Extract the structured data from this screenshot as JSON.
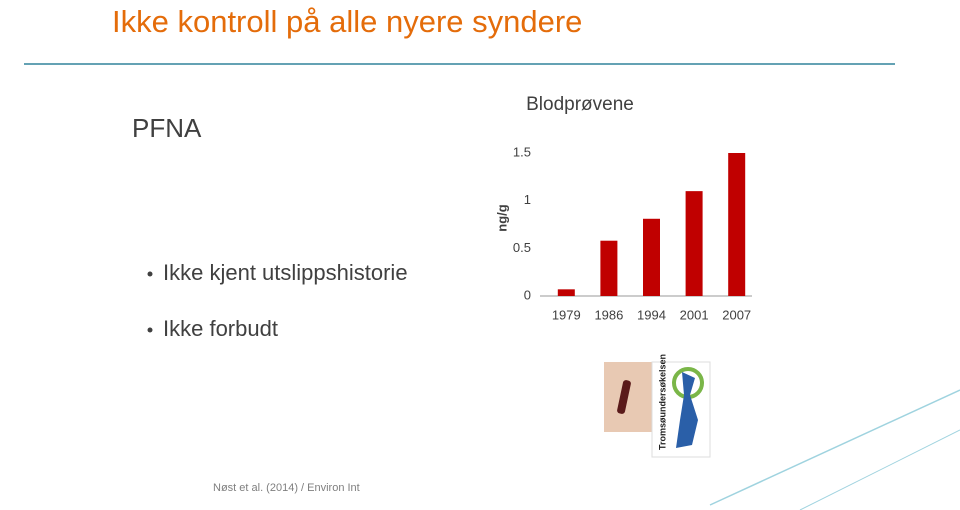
{
  "slide": {
    "title": "Ikke kontroll på alle nyere syndere",
    "heading": "PFNA",
    "bullets": [
      "Ikke kjent utslippshistorie",
      "Ikke forbudt"
    ],
    "footer": "Nøst et al. (2014) / Environ Int",
    "logo_text": "Tromsøundersøkelsen"
  },
  "chart_data": {
    "type": "bar",
    "title": "Blodprøvene",
    "y_label": "ng/g",
    "categories": [
      "1979",
      "1986",
      "1994",
      "2001",
      "2007"
    ],
    "values": [
      0.07,
      0.58,
      0.81,
      1.1,
      1.5
    ],
    "color": "#c00000",
    "ylim": [
      0,
      1.5
    ],
    "yticks": [
      0,
      0.5,
      1,
      1.5
    ],
    "grid": false
  }
}
